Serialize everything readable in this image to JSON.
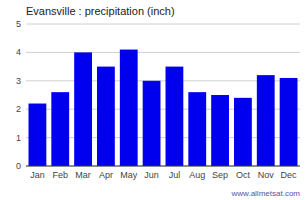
{
  "chart_data": {
    "type": "bar",
    "title": "Evansville : precipitation (inch)",
    "categories": [
      "Jan",
      "Feb",
      "Mar",
      "Apr",
      "May",
      "Jun",
      "Jul",
      "Aug",
      "Sep",
      "Oct",
      "Nov",
      "Dec"
    ],
    "values": [
      2.2,
      2.6,
      4.0,
      3.5,
      4.1,
      3.0,
      3.5,
      2.6,
      2.5,
      2.4,
      3.2,
      3.1
    ],
    "color": "#0000EE",
    "ylim": [
      0,
      5
    ],
    "yticks": [
      0,
      1,
      2,
      3,
      4,
      5
    ],
    "grid": true,
    "annotations": [
      "www.allmetsat.com"
    ]
  }
}
